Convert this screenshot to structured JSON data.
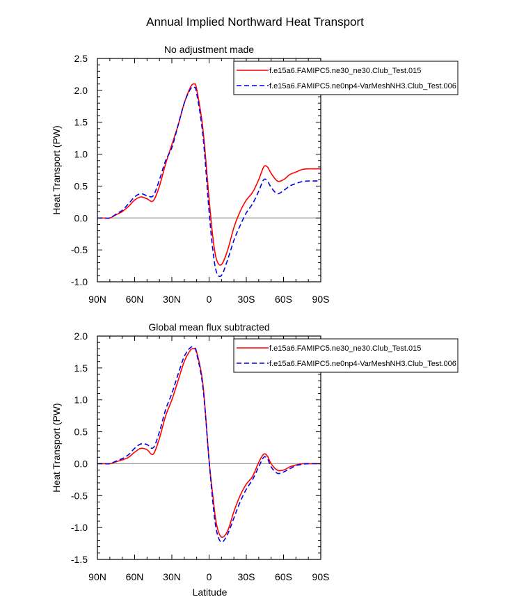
{
  "figure": {
    "title": "Annual Implied Northward Heat Transport"
  },
  "chart_data": [
    {
      "type": "line",
      "title": "No adjustment made",
      "xlabel": "",
      "ylabel": "Heat Transport (PW)",
      "xlim": [
        90,
        -90
      ],
      "ylim": [
        -1.0,
        2.5
      ],
      "x_ticks": [
        90,
        60,
        30,
        0,
        -30,
        -60,
        -90
      ],
      "x_tick_labels": [
        "90N",
        "60N",
        "30N",
        "0",
        "30S",
        "60S",
        "90S"
      ],
      "y_ticks": [
        -1.0,
        -0.5,
        0.0,
        0.5,
        1.0,
        1.5,
        2.0,
        2.5
      ],
      "y_tick_labels": [
        "-1.0",
        "-0.5",
        "0.0",
        "0.5",
        "1.0",
        "1.5",
        "2.0",
        "2.5"
      ],
      "zero_line": true,
      "legend": "top-right",
      "series": [
        {
          "name": "f.e15a6.FAMIPC5.ne30_ne30.Club_Test.015",
          "color": "#ff0000",
          "dash": "solid",
          "x": [
            90,
            85,
            80,
            75,
            70,
            65,
            60,
            55,
            50,
            45,
            40,
            35,
            30,
            25,
            20,
            15,
            12,
            10,
            5,
            0,
            -3,
            -6,
            -10,
            -15,
            -20,
            -25,
            -30,
            -35,
            -40,
            -44,
            -47,
            -50,
            -55,
            -60,
            -65,
            -70,
            -75,
            -80,
            -85,
            -90
          ],
          "y": [
            0.0,
            0.0,
            0.0,
            0.05,
            0.1,
            0.18,
            0.28,
            0.33,
            0.3,
            0.27,
            0.5,
            0.85,
            1.15,
            1.45,
            1.8,
            2.05,
            2.1,
            2.02,
            1.4,
            0.3,
            -0.3,
            -0.65,
            -0.73,
            -0.5,
            -0.15,
            0.1,
            0.28,
            0.4,
            0.6,
            0.8,
            0.8,
            0.7,
            0.58,
            0.6,
            0.68,
            0.72,
            0.76,
            0.77,
            0.77,
            0.77
          ]
        },
        {
          "name": "f.e15a6.FAMIPC5.ne0np4-VarMeshNH3.Club_Test.006",
          "color": "#0000ee",
          "dash": "dashed",
          "x": [
            90,
            85,
            80,
            75,
            70,
            65,
            60,
            55,
            50,
            45,
            40,
            35,
            30,
            25,
            20,
            15,
            12,
            10,
            5,
            0,
            -3,
            -6,
            -10,
            -15,
            -20,
            -25,
            -30,
            -35,
            -40,
            -44,
            -47,
            -50,
            -55,
            -60,
            -65,
            -70,
            -75,
            -80,
            -85,
            -90
          ],
          "y": [
            0.0,
            0.0,
            0.0,
            0.06,
            0.12,
            0.22,
            0.33,
            0.38,
            0.35,
            0.35,
            0.6,
            0.9,
            1.1,
            1.45,
            1.8,
            2.02,
            2.05,
            1.95,
            1.3,
            0.1,
            -0.5,
            -0.85,
            -0.9,
            -0.65,
            -0.35,
            -0.12,
            0.08,
            0.22,
            0.42,
            0.6,
            0.58,
            0.48,
            0.38,
            0.43,
            0.5,
            0.54,
            0.57,
            0.58,
            0.58,
            0.58
          ]
        }
      ]
    },
    {
      "type": "line",
      "title": "Global mean flux subtracted",
      "xlabel": "Latitude",
      "ylabel": "Heat Transport (PW)",
      "xlim": [
        90,
        -90
      ],
      "ylim": [
        -1.5,
        2.0
      ],
      "x_ticks": [
        90,
        60,
        30,
        0,
        -30,
        -60,
        -90
      ],
      "x_tick_labels": [
        "90N",
        "60N",
        "30N",
        "0",
        "30S",
        "60S",
        "90S"
      ],
      "y_ticks": [
        -1.5,
        -1.0,
        -0.5,
        0.0,
        0.5,
        1.0,
        1.5,
        2.0
      ],
      "y_tick_labels": [
        "-1.5",
        "-1.0",
        "-0.5",
        "0.0",
        "0.5",
        "1.0",
        "1.5",
        "2.0"
      ],
      "zero_line": true,
      "legend": "top-right",
      "series": [
        {
          "name": "f.e15a6.FAMIPC5.ne30_ne30.Club_Test.015",
          "color": "#ff0000",
          "dash": "solid",
          "x": [
            90,
            85,
            80,
            75,
            70,
            65,
            60,
            55,
            50,
            45,
            40,
            35,
            30,
            25,
            20,
            15,
            12,
            10,
            5,
            0,
            -3,
            -6,
            -10,
            -15,
            -20,
            -25,
            -30,
            -35,
            -40,
            -44,
            -47,
            -50,
            -55,
            -60,
            -65,
            -70,
            -75,
            -80,
            -85,
            -90
          ],
          "y": [
            0.0,
            0.0,
            0.0,
            0.03,
            0.06,
            0.1,
            0.18,
            0.24,
            0.22,
            0.15,
            0.4,
            0.75,
            1.0,
            1.3,
            1.6,
            1.78,
            1.8,
            1.75,
            1.25,
            0.05,
            -0.5,
            -0.95,
            -1.15,
            -1.05,
            -0.75,
            -0.5,
            -0.32,
            -0.2,
            0.02,
            0.15,
            0.12,
            0.0,
            -0.1,
            -0.1,
            -0.05,
            -0.02,
            0.0,
            0.0,
            0.0,
            0.0
          ]
        },
        {
          "name": "f.e15a6.FAMIPC5.ne0np4-VarMeshNH3.Club_Test.006",
          "color": "#0000ee",
          "dash": "dashed",
          "x": [
            90,
            85,
            80,
            75,
            70,
            65,
            60,
            55,
            50,
            45,
            40,
            35,
            30,
            25,
            20,
            15,
            12,
            10,
            5,
            0,
            -3,
            -6,
            -10,
            -15,
            -20,
            -25,
            -30,
            -35,
            -40,
            -44,
            -47,
            -50,
            -55,
            -60,
            -65,
            -70,
            -75,
            -80,
            -85,
            -90
          ],
          "y": [
            0.0,
            0.0,
            0.0,
            0.04,
            0.08,
            0.14,
            0.24,
            0.31,
            0.3,
            0.25,
            0.5,
            0.85,
            1.1,
            1.4,
            1.68,
            1.82,
            1.82,
            1.72,
            1.2,
            0.05,
            -0.6,
            -1.05,
            -1.23,
            -1.1,
            -0.85,
            -0.6,
            -0.4,
            -0.25,
            -0.05,
            0.1,
            0.08,
            -0.05,
            -0.15,
            -0.13,
            -0.08,
            -0.03,
            -0.01,
            0.0,
            0.0,
            0.0
          ]
        }
      ]
    }
  ]
}
